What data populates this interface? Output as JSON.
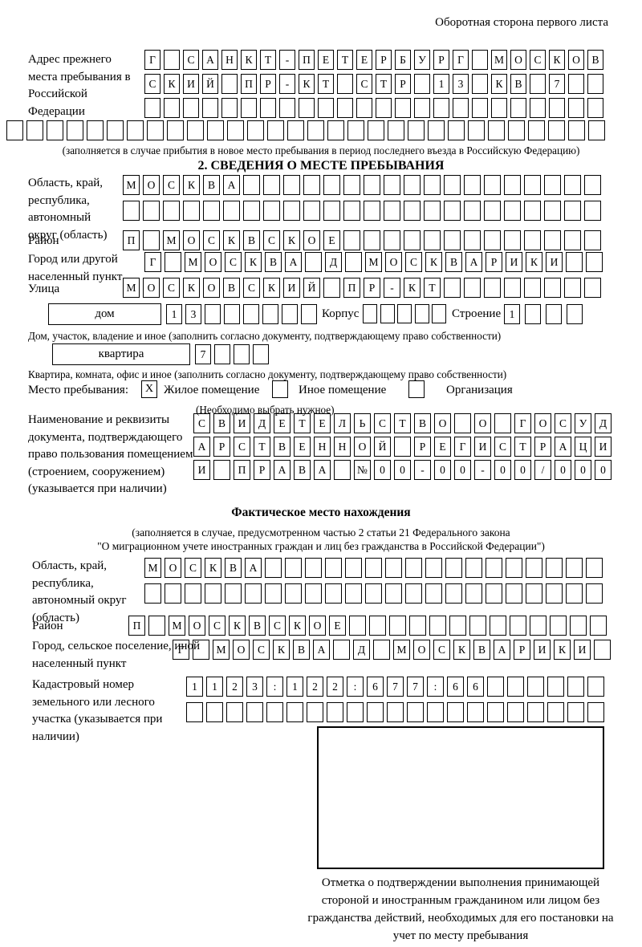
{
  "header": {
    "note": "Оборотная сторона первого листа"
  },
  "prev_address": {
    "label": "Адрес прежнего места пребывания в Российской Федерации",
    "rows": [
      [
        "Г",
        "",
        "С",
        "А",
        "Н",
        "К",
        "Т",
        "-",
        "П",
        "Е",
        "Т",
        "Е",
        "Р",
        "Б",
        "У",
        "Р",
        "Г",
        "",
        "М",
        "О",
        "С",
        "К",
        "О",
        "В"
      ],
      [
        "С",
        "К",
        "И",
        "Й",
        "",
        "П",
        "Р",
        "-",
        "К",
        "Т",
        "",
        "С",
        "Т",
        "Р",
        "",
        "1",
        "3",
        "",
        "К",
        "В",
        "",
        "7",
        "",
        ""
      ],
      [
        "",
        "",
        "",
        "",
        "",
        "",
        "",
        "",
        "",
        "",
        "",
        "",
        "",
        "",
        "",
        "",
        "",
        "",
        "",
        "",
        "",
        "",
        "",
        ""
      ]
    ],
    "overflow_row": [
      "",
      "",
      "",
      "",
      "",
      "",
      "",
      "",
      "",
      "",
      "",
      "",
      "",
      "",
      "",
      "",
      "",
      "",
      "",
      "",
      "",
      "",
      "",
      "",
      "",
      "",
      "",
      "",
      "",
      ""
    ],
    "caption": "(заполняется в случае прибытия в новое место пребывания в период последнего въезда в Российскую Федерацию)"
  },
  "section2": {
    "title": "2. СВЕДЕНИЯ О МЕСТЕ ПРЕБЫВАНИЯ",
    "region": {
      "label": "Область, край, республика, автономный округ (область)",
      "rows": [
        [
          "М",
          "О",
          "С",
          "К",
          "В",
          "А",
          "",
          "",
          "",
          "",
          "",
          "",
          "",
          "",
          "",
          "",
          "",
          "",
          "",
          "",
          "",
          "",
          "",
          ""
        ],
        [
          "",
          "",
          "",
          "",
          "",
          "",
          "",
          "",
          "",
          "",
          "",
          "",
          "",
          "",
          "",
          "",
          "",
          "",
          "",
          "",
          "",
          "",
          "",
          ""
        ]
      ]
    },
    "district": {
      "label": "Район",
      "row": [
        "П",
        "",
        "М",
        "О",
        "С",
        "К",
        "В",
        "С",
        "К",
        "О",
        "Е",
        "",
        "",
        "",
        "",
        "",
        "",
        "",
        "",
        "",
        "",
        "",
        "",
        ""
      ]
    },
    "city": {
      "label": "Город или другой населенный пункт",
      "row": [
        "Г",
        "",
        "М",
        "О",
        "С",
        "К",
        "В",
        "А",
        "",
        "Д",
        "",
        "М",
        "О",
        "С",
        "К",
        "В",
        "А",
        "Р",
        "И",
        "К",
        "И",
        "",
        ""
      ]
    },
    "street": {
      "label": "Улица",
      "row": [
        "М",
        "О",
        "С",
        "К",
        "О",
        "В",
        "С",
        "К",
        "И",
        "Й",
        "",
        "П",
        "Р",
        "-",
        "К",
        "Т",
        "",
        "",
        "",
        "",
        "",
        "",
        "",
        ""
      ]
    },
    "house": {
      "box_label": "дом",
      "row": [
        "1",
        "3",
        "",
        "",
        "",
        "",
        "",
        ""
      ],
      "korpus_label": "Корпус",
      "korpus_row": [
        "",
        "",
        "",
        "",
        ""
      ],
      "stroenie_label": "Строение",
      "stroenie_row": [
        "1",
        "",
        "",
        ""
      ]
    },
    "house_caption": "Дом, участок, владение и иное (заполнить согласно документу, подтверждающему право собственности)",
    "apartment": {
      "box_label": "квартира",
      "row": [
        "7",
        "",
        "",
        ""
      ]
    },
    "apartment_caption": "Квартира, комната, офис и иное (заполнить согласно документу, подтверждающему право собственности)",
    "stay_type": {
      "label": "Место пребывания:",
      "options": [
        {
          "mark": "X",
          "label": "Жилое помещение"
        },
        {
          "mark": "",
          "label": "Иное помещение"
        },
        {
          "mark": "",
          "label": "Организация"
        }
      ],
      "caption": "(Необходимо выбрать нужное)"
    },
    "document": {
      "label": "Наименование и реквизиты документа, подтверждающего право пользования помещением (строением, сооружением) (указывается при наличии)",
      "rows": [
        [
          "С",
          "В",
          "И",
          "Д",
          "Е",
          "Т",
          "Е",
          "Л",
          "Ь",
          "С",
          "Т",
          "В",
          "О",
          "",
          "О",
          "",
          "Г",
          "О",
          "С",
          "У",
          "Д"
        ],
        [
          "А",
          "Р",
          "С",
          "Т",
          "В",
          "Е",
          "Н",
          "Н",
          "О",
          "Й",
          "",
          "Р",
          "Е",
          "Г",
          "И",
          "С",
          "Т",
          "Р",
          "А",
          "Ц",
          "И"
        ],
        [
          "И",
          "",
          "П",
          "Р",
          "А",
          "В",
          "А",
          "",
          "№",
          "0",
          "0",
          "-",
          "0",
          "0",
          "-",
          "0",
          "0",
          "/",
          "0",
          "0",
          "0"
        ]
      ]
    }
  },
  "actual_location": {
    "title": "Фактическое место нахождения",
    "caption1": "(заполняется в случае, предусмотренном частью 2 статьи 21 Федерального закона",
    "caption2": "\"О миграционном учете иностранных граждан и лиц без гражданства в Российской Федерации\")",
    "region": {
      "label": "Область, край, республика, автономный округ (область)",
      "rows": [
        [
          "М",
          "О",
          "С",
          "К",
          "В",
          "А",
          "",
          "",
          "",
          "",
          "",
          "",
          "",
          "",
          "",
          "",
          "",
          "",
          "",
          "",
          "",
          "",
          ""
        ],
        [
          "",
          "",
          "",
          "",
          "",
          "",
          "",
          "",
          "",
          "",
          "",
          "",
          "",
          "",
          "",
          "",
          "",
          "",
          "",
          "",
          "",
          "",
          ""
        ]
      ]
    },
    "district": {
      "label": "Район",
      "row": [
        "П",
        "",
        "М",
        "О",
        "С",
        "К",
        "В",
        "С",
        "К",
        "О",
        "Е",
        "",
        "",
        "",
        "",
        "",
        "",
        "",
        "",
        "",
        "",
        "",
        "",
        ""
      ]
    },
    "city": {
      "label": "Город, сельское поселение, иной населенный пункт",
      "row": [
        "Г",
        "",
        "М",
        "О",
        "С",
        "К",
        "В",
        "А",
        "",
        "Д",
        "",
        "М",
        "О",
        "С",
        "К",
        "В",
        "А",
        "Р",
        "И",
        "К",
        "И",
        ""
      ]
    },
    "cadastral": {
      "label": "Кадастровый номер земельного или лесного участка (указывается при наличии)",
      "rows": [
        [
          "1",
          "1",
          "2",
          "3",
          ":",
          "1",
          "2",
          "2",
          ":",
          "6",
          "7",
          "7",
          ":",
          "6",
          "6",
          "",
          "",
          "",
          "",
          "",
          ""
        ],
        [
          "",
          "",
          "",
          "",
          "",
          "",
          "",
          "",
          "",
          "",
          "",
          "",
          "",
          "",
          "",
          "",
          "",
          "",
          "",
          "",
          ""
        ]
      ]
    },
    "stamp_caption": "Отметка о подтверждении выполнения принимающей стороной и иностранным гражданином или лицом без гражданства действий, необходимых для его постановки на учет по месту пребывания"
  }
}
